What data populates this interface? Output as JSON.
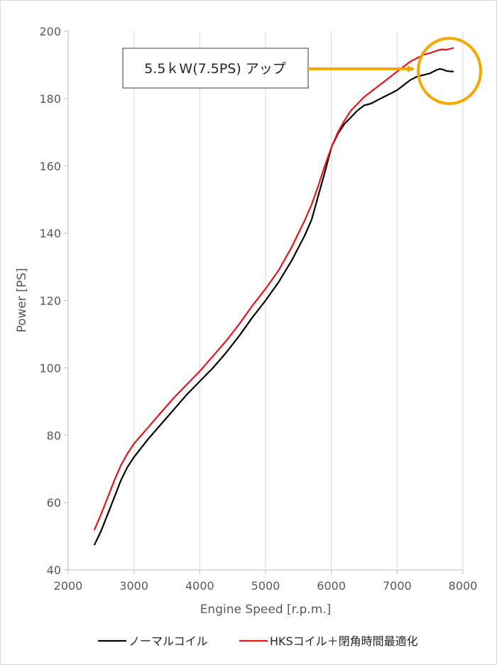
{
  "chart_data": {
    "type": "line",
    "xlabel": "Engine Speed [r.p.m.]",
    "ylabel": "Power [PS]",
    "xlim": [
      2000,
      8000
    ],
    "ylim": [
      40,
      200
    ],
    "xticks": [
      "2000",
      "3000",
      "4000",
      "5000",
      "6000",
      "7000",
      "8000"
    ],
    "yticks": [
      "40",
      "60",
      "80",
      "100",
      "120",
      "140",
      "160",
      "180",
      "200"
    ],
    "grid": "vertical",
    "legend_position": "bottom",
    "annotation": "5.5ｋW(7.5PS) アップ",
    "series": [
      {
        "name": "ノーマルコイル",
        "color": "#000000",
        "x": [
          2400,
          2500,
          2600,
          2700,
          2800,
          2900,
          3000,
          3200,
          3400,
          3600,
          3800,
          4000,
          4200,
          4400,
          4600,
          4800,
          5000,
          5200,
          5400,
          5600,
          5700,
          5800,
          5900,
          6000,
          6100,
          6200,
          6300,
          6400,
          6500,
          6600,
          6700,
          6800,
          6900,
          7000,
          7100,
          7200,
          7300,
          7400,
          7500,
          7600,
          7650,
          7700,
          7750,
          7850
        ],
        "y": [
          47.5,
          51.5,
          56.5,
          61.5,
          66.5,
          70.5,
          73.5,
          78.5,
          83,
          87.5,
          92,
          96,
          100,
          104.5,
          109.5,
          115,
          120,
          125.5,
          132,
          139.5,
          144,
          151,
          158,
          165.5,
          169.5,
          172.5,
          174.5,
          176.5,
          178,
          178.5,
          179.5,
          180.5,
          181.5,
          182.5,
          184,
          185.5,
          186.5,
          187,
          187.5,
          188.5,
          188.8,
          188.6,
          188.2,
          188
        ]
      },
      {
        "name": "HKSコイル＋閉角時間最適化",
        "color": "#e8141c",
        "x": [
          2400,
          2500,
          2600,
          2700,
          2800,
          2900,
          3000,
          3200,
          3400,
          3600,
          3800,
          4000,
          4200,
          4400,
          4600,
          4800,
          5000,
          5200,
          5400,
          5600,
          5700,
          5800,
          5900,
          6000,
          6100,
          6200,
          6300,
          6400,
          6500,
          6600,
          6700,
          6800,
          6900,
          7000,
          7100,
          7200,
          7300,
          7400,
          7500,
          7600,
          7650,
          7700,
          7750,
          7850
        ],
        "y": [
          52,
          56.5,
          61.5,
          66.5,
          71,
          74.5,
          77.5,
          82,
          86.5,
          91,
          95,
          99,
          103.5,
          108,
          113,
          118.5,
          123.5,
          129,
          136,
          144,
          148.5,
          154,
          160,
          165.5,
          170,
          173.5,
          176.5,
          178.5,
          180.5,
          182,
          183.5,
          185,
          186.5,
          188,
          189.5,
          191,
          192,
          193,
          193.5,
          194.2,
          194.5,
          194.6,
          194.5,
          195
        ]
      }
    ]
  }
}
